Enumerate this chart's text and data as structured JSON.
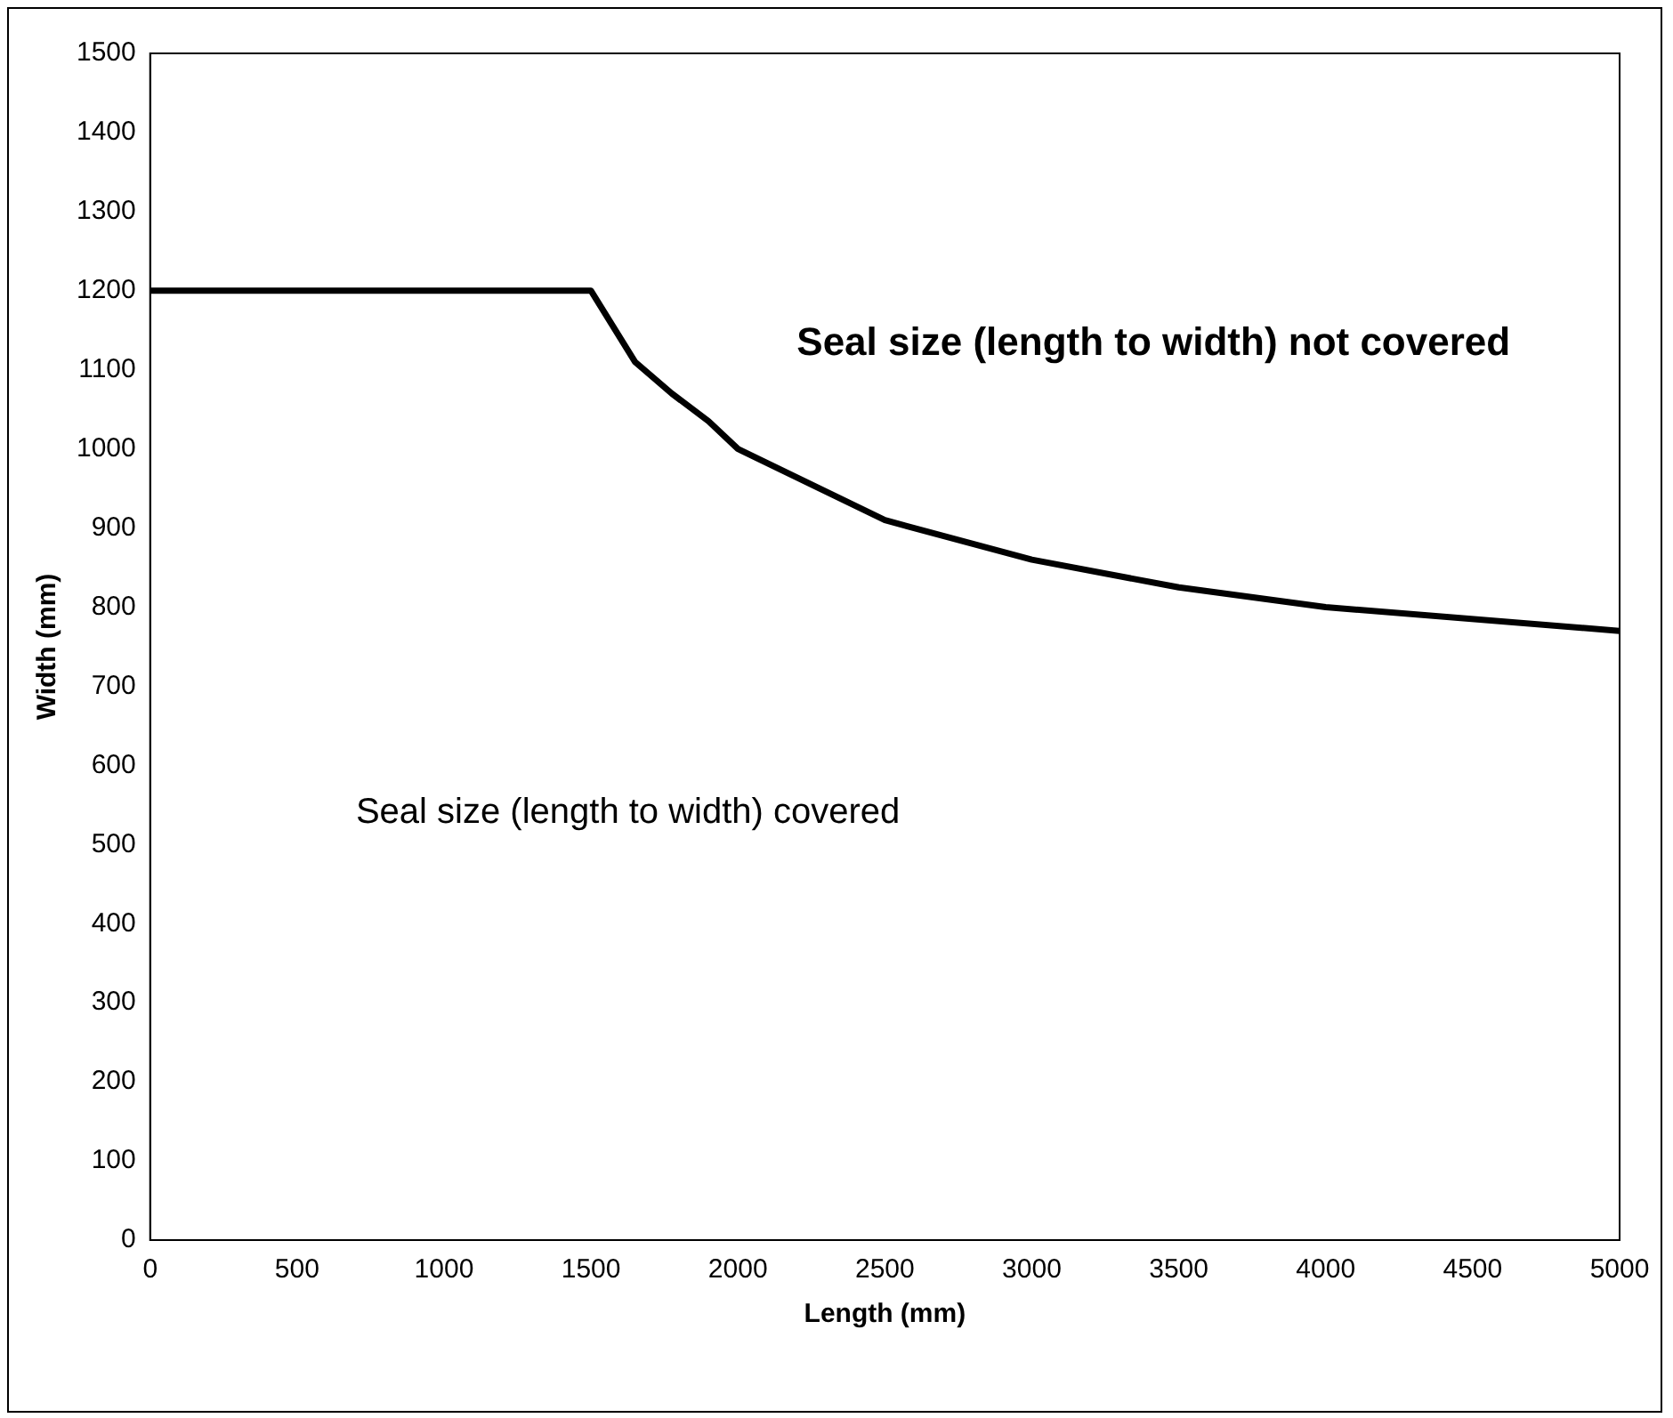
{
  "chart_data": {
    "type": "line",
    "xlabel": "Length (mm)",
    "ylabel": "Width (mm)",
    "x": [
      0,
      1500,
      1650,
      1775,
      1900,
      2000,
      2500,
      3000,
      3500,
      4000,
      5000
    ],
    "series": [
      {
        "color": "#000000",
        "values": [
          1200,
          1200,
          1110,
          1070,
          1035,
          1000,
          910,
          860,
          825,
          800,
          770
        ]
      }
    ],
    "xlim": [
      0,
      5000
    ],
    "xticks": [
      0,
      500,
      1000,
      1500,
      2000,
      2500,
      3000,
      3500,
      4000,
      4500,
      5000
    ],
    "ylim": [
      0,
      1500
    ],
    "yticks": [
      0,
      100,
      200,
      300,
      400,
      500,
      600,
      700,
      800,
      900,
      1000,
      1100,
      1200,
      1300,
      1400,
      1500
    ],
    "annotations": [
      "Seal size (length to width) not covered",
      "Seal size (length to width) covered"
    ],
    "grid": false,
    "legend": false,
    "marker": "none",
    "line_style": "solid"
  }
}
